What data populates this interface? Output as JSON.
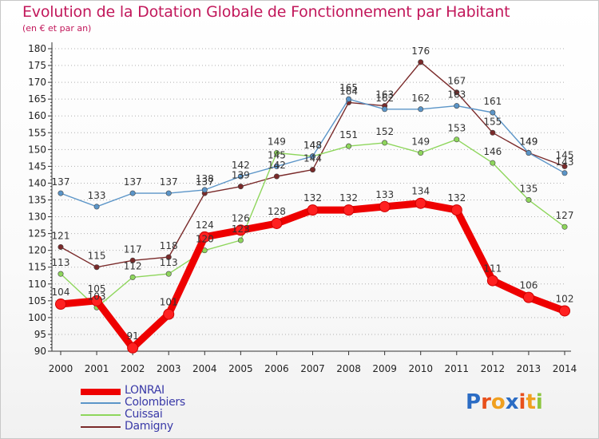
{
  "header": {
    "title": "Evolution de la Dotation Globale de Fonctionnement par Habitant",
    "subtitle": "(en € et par an)"
  },
  "logo": {
    "text": "Proxiti",
    "letters": [
      {
        "char": "P",
        "color": "#2b6cc4"
      },
      {
        "char": "r",
        "color": "#e8501c"
      },
      {
        "char": "o",
        "color": "#f0a020"
      },
      {
        "char": "x",
        "color": "#2b6cc4"
      },
      {
        "char": "i",
        "color": "#e8501c"
      },
      {
        "char": "t",
        "color": "#f0a020"
      },
      {
        "char": "i",
        "color": "#8cc63f"
      }
    ]
  },
  "chart_data": {
    "type": "line",
    "title": "Evolution de la Dotation Globale de Fonctionnement par Habitant",
    "subtitle": "(en € et par an)",
    "xlabel": "",
    "ylabel": "",
    "x": [
      "2000",
      "2001",
      "2002",
      "2003",
      "2004",
      "2005",
      "2006",
      "2007",
      "2008",
      "2009",
      "2010",
      "2011",
      "2012",
      "2013",
      "2014"
    ],
    "ylim": [
      90,
      180
    ],
    "yticks": [
      90,
      95,
      100,
      105,
      110,
      115,
      120,
      125,
      130,
      135,
      140,
      145,
      150,
      155,
      160,
      165,
      170,
      175,
      180
    ],
    "grid": "horizontal dotted",
    "legend": "bottom-left",
    "series": [
      {
        "name": "LONRAI",
        "color": "#ee0000",
        "values": [
          104,
          105,
          91,
          101,
          124,
          126,
          128,
          132,
          132,
          133,
          134,
          132,
          111,
          106,
          102
        ]
      },
      {
        "name": "Colombiers",
        "color": "#5b95c8",
        "values": [
          137,
          133,
          137,
          137,
          138,
          142,
          145,
          148,
          165,
          162,
          162,
          163,
          161,
          149,
          143
        ]
      },
      {
        "name": "Cuissai",
        "color": "#8ed65c",
        "values": [
          113,
          103,
          112,
          113,
          120,
          123,
          149,
          148,
          151,
          152,
          149,
          153,
          146,
          135,
          127
        ]
      },
      {
        "name": "Damigny",
        "color": "#7a2a2a",
        "values": [
          121,
          115,
          117,
          118,
          137,
          139,
          142,
          144,
          164,
          163,
          176,
          167,
          155,
          149,
          145
        ]
      }
    ]
  }
}
